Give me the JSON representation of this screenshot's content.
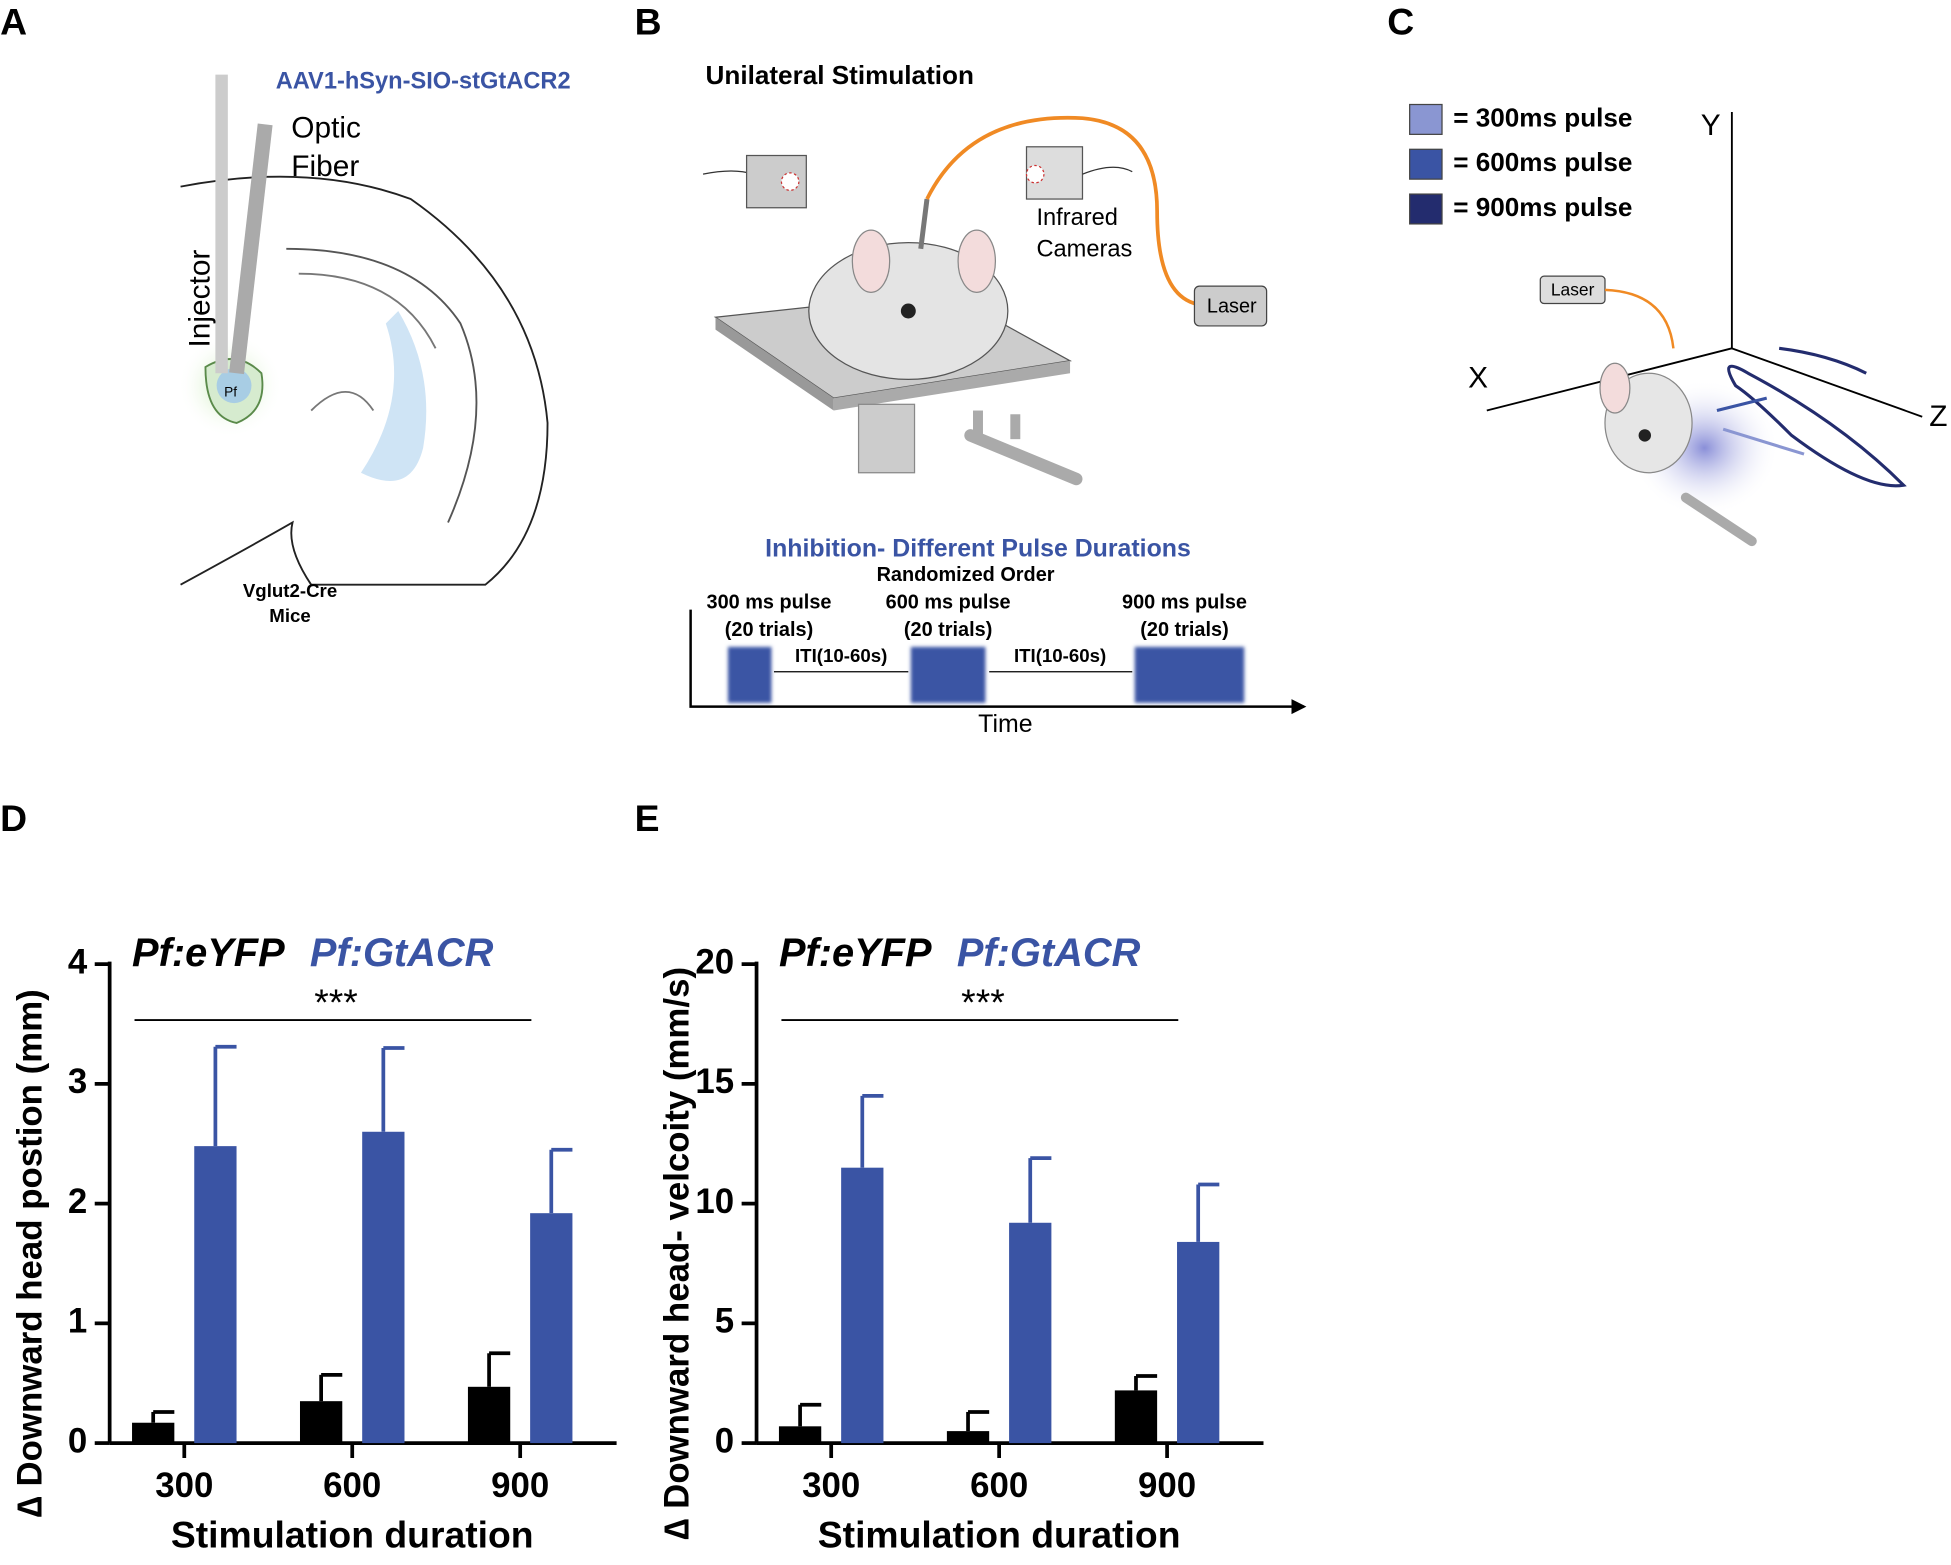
{
  "panels": {
    "A": {
      "letter": "A",
      "virus": "AAV1-hSyn-SIO-stGtACR2",
      "fiber": [
        "Optic",
        "Fiber"
      ],
      "injector": "Injector",
      "region": "Pf",
      "mice": [
        "Vglut2-Cre",
        "Mice"
      ]
    },
    "B": {
      "letter": "B",
      "title": "Unilateral Stimulation",
      "cameras": [
        "Infrared",
        "Cameras"
      ],
      "laser": "Laser",
      "protocol_title": "Inhibition- Different Pulse Durations",
      "protocol_subtitle": "Randomized Order",
      "pulses": [
        [
          "300 ms pulse",
          "(20 trials)"
        ],
        [
          "600 ms pulse",
          "(20 trials)"
        ],
        [
          "900 ms pulse",
          "(20 trials)"
        ]
      ],
      "iti": [
        "ITI(10-60s)",
        "ITI(10-60s)"
      ],
      "time": "Time"
    },
    "C": {
      "letter": "C",
      "legend": [
        "= 300ms pulse",
        "= 600ms pulse",
        "= 900ms pulse"
      ],
      "legend_colors": [
        "#8a96d2",
        "#3a54a4",
        "#232c6e"
      ],
      "axes": [
        "Y",
        "X",
        "Z"
      ],
      "laser": "Laser"
    },
    "D": {
      "letter": "D"
    },
    "E": {
      "letter": "E"
    }
  },
  "chart_data": [
    {
      "type": "bar",
      "ylabel": "∆ Downward head postion (mm)",
      "xlabel": "Stimulation duration",
      "annotation": "***",
      "categories": [
        "300",
        "600",
        "900"
      ],
      "series": [
        {
          "name": "Pf:eYFP",
          "color": "#000000",
          "values": [
            0.17,
            0.35,
            0.47
          ],
          "errors": [
            0.09,
            0.22,
            0.28
          ]
        },
        {
          "name": "Pf:GtACR",
          "color": "#3a54a4",
          "values": [
            2.48,
            2.6,
            1.92
          ],
          "errors": [
            0.83,
            0.7,
            0.53
          ]
        }
      ],
      "ylim": [
        0,
        4
      ],
      "yticks": [
        0,
        1,
        2,
        3,
        4
      ]
    },
    {
      "type": "bar",
      "ylabel": "∆ Downward head- velcoity (mm/s)",
      "xlabel": "Stimulation duration",
      "annotation": "***",
      "categories": [
        "300",
        "600",
        "900"
      ],
      "series": [
        {
          "name": "Pf:eYFP",
          "color": "#000000",
          "values": [
            0.7,
            0.5,
            2.2
          ],
          "errors": [
            0.9,
            0.8,
            0.6
          ]
        },
        {
          "name": "Pf:GtACR",
          "color": "#3a54a4",
          "values": [
            11.5,
            9.2,
            8.4
          ],
          "errors": [
            3,
            2.7,
            2.4
          ]
        }
      ],
      "ylim": [
        0,
        20
      ],
      "yticks": [
        0,
        5,
        10,
        15,
        20
      ]
    }
  ]
}
